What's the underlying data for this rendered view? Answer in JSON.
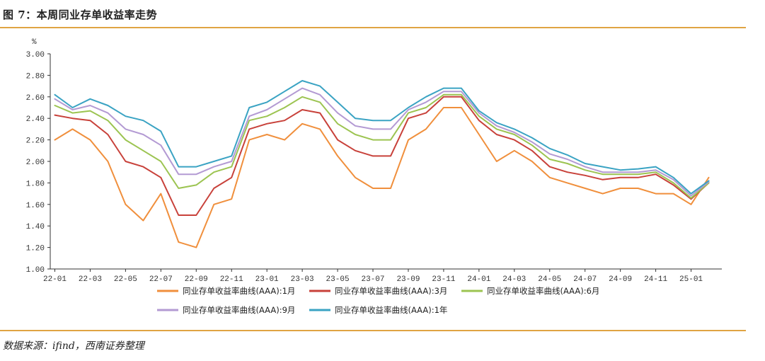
{
  "title": "图 7：本周同业存单收益率走势",
  "source": "数据来源：ifind，西南证券整理",
  "chart_data": {
    "type": "line",
    "title": "图 7：本周同业存单收益率走势",
    "ylabel": "%",
    "ylim": [
      1.0,
      3.0
    ],
    "yticks": [
      "3.00",
      "2.80",
      "2.60",
      "2.40",
      "2.20",
      "2.00",
      "1.80",
      "1.60",
      "1.40",
      "1.20",
      "1.00"
    ],
    "xticks": [
      "22-01",
      "22-03",
      "22-05",
      "22-07",
      "22-09",
      "22-11",
      "23-01",
      "23-03",
      "23-05",
      "23-07",
      "23-09",
      "23-11",
      "24-01",
      "24-03",
      "24-05",
      "24-07",
      "24-09",
      "24-11",
      "25-01"
    ],
    "grid": false,
    "legend_position": "bottom",
    "x": [
      "22-01",
      "22-02",
      "22-03",
      "22-04",
      "22-05",
      "22-06",
      "22-07",
      "22-08",
      "22-09",
      "22-10",
      "22-11",
      "22-12",
      "23-01",
      "23-02",
      "23-03",
      "23-04",
      "23-05",
      "23-06",
      "23-07",
      "23-08",
      "23-09",
      "23-10",
      "23-11",
      "23-12",
      "24-01",
      "24-02",
      "24-03",
      "24-04",
      "24-05",
      "24-06",
      "24-07",
      "24-08",
      "24-09",
      "24-10",
      "24-11",
      "24-12",
      "25-01",
      "25-02"
    ],
    "series": [
      {
        "name": "同业存单收益率曲线(AAA):1月",
        "color": "#f08f3c",
        "values": [
          2.2,
          2.3,
          2.2,
          2.0,
          1.6,
          1.45,
          1.7,
          1.25,
          1.2,
          1.6,
          1.65,
          2.2,
          2.25,
          2.2,
          2.35,
          2.3,
          2.05,
          1.85,
          1.75,
          1.75,
          2.2,
          2.3,
          2.5,
          2.5,
          2.25,
          2.0,
          2.1,
          2.0,
          1.85,
          1.8,
          1.75,
          1.7,
          1.75,
          1.75,
          1.7,
          1.7,
          1.6,
          1.85
        ]
      },
      {
        "name": "同业存单收益率曲线(AAA):3月",
        "color": "#c8413a",
        "values": [
          2.43,
          2.4,
          2.38,
          2.25,
          2.0,
          1.95,
          1.85,
          1.5,
          1.5,
          1.75,
          1.85,
          2.3,
          2.35,
          2.38,
          2.48,
          2.45,
          2.2,
          2.1,
          2.05,
          2.05,
          2.4,
          2.45,
          2.6,
          2.6,
          2.38,
          2.25,
          2.2,
          2.1,
          1.95,
          1.9,
          1.87,
          1.83,
          1.85,
          1.85,
          1.88,
          1.78,
          1.65,
          1.8
        ]
      },
      {
        "name": "同业存单收益率曲线(AAA):6月",
        "color": "#9cc451",
        "values": [
          2.52,
          2.45,
          2.47,
          2.38,
          2.2,
          2.1,
          2.0,
          1.75,
          1.78,
          1.9,
          1.95,
          2.38,
          2.42,
          2.5,
          2.6,
          2.55,
          2.35,
          2.25,
          2.2,
          2.2,
          2.45,
          2.5,
          2.62,
          2.62,
          2.42,
          2.3,
          2.25,
          2.15,
          2.02,
          1.98,
          1.92,
          1.88,
          1.88,
          1.88,
          1.9,
          1.8,
          1.66,
          1.8
        ]
      },
      {
        "name": "同业存单收益率曲线(AAA):9月",
        "color": "#b39ad3",
        "values": [
          2.58,
          2.48,
          2.52,
          2.45,
          2.3,
          2.25,
          2.15,
          1.88,
          1.88,
          1.95,
          2.0,
          2.42,
          2.48,
          2.58,
          2.68,
          2.62,
          2.45,
          2.33,
          2.3,
          2.3,
          2.48,
          2.55,
          2.65,
          2.65,
          2.45,
          2.33,
          2.27,
          2.18,
          2.07,
          2.02,
          1.95,
          1.9,
          1.9,
          1.9,
          1.92,
          1.83,
          1.68,
          1.81
        ]
      },
      {
        "name": "同业存单收益率曲线(AAA):1年",
        "color": "#3aa3c3",
        "values": [
          2.62,
          2.5,
          2.58,
          2.52,
          2.42,
          2.38,
          2.28,
          1.95,
          1.95,
          2.0,
          2.05,
          2.5,
          2.55,
          2.65,
          2.75,
          2.7,
          2.55,
          2.4,
          2.38,
          2.38,
          2.5,
          2.6,
          2.68,
          2.68,
          2.47,
          2.36,
          2.3,
          2.22,
          2.12,
          2.06,
          1.98,
          1.95,
          1.92,
          1.93,
          1.95,
          1.85,
          1.7,
          1.82
        ]
      }
    ]
  }
}
